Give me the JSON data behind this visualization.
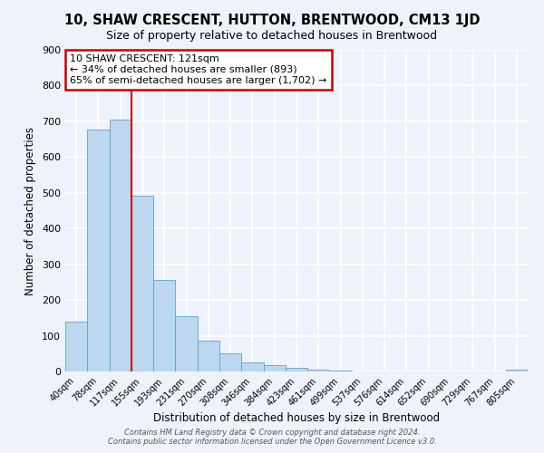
{
  "title": "10, SHAW CRESCENT, HUTTON, BRENTWOOD, CM13 1JD",
  "subtitle": "Size of property relative to detached houses in Brentwood",
  "xlabel": "Distribution of detached houses by size in Brentwood",
  "ylabel": "Number of detached properties",
  "bin_labels": [
    "40sqm",
    "78sqm",
    "117sqm",
    "155sqm",
    "193sqm",
    "231sqm",
    "270sqm",
    "308sqm",
    "346sqm",
    "384sqm",
    "423sqm",
    "461sqm",
    "499sqm",
    "537sqm",
    "576sqm",
    "614sqm",
    "652sqm",
    "690sqm",
    "729sqm",
    "767sqm",
    "805sqm"
  ],
  "bar_heights": [
    140,
    678,
    705,
    493,
    256,
    155,
    87,
    51,
    25,
    18,
    10,
    6,
    3,
    1,
    1,
    0,
    0,
    0,
    0,
    0,
    5
  ],
  "bar_color": "#BDD7EE",
  "bar_edge_color": "#5BA3D0",
  "highlight_line_index": 2,
  "annotation_title": "10 SHAW CRESCENT: 121sqm",
  "annotation_line1": "← 34% of detached houses are smaller (893)",
  "annotation_line2": "65% of semi-detached houses are larger (1,702) →",
  "annotation_box_facecolor": "#ffffff",
  "annotation_box_edgecolor": "#cc0000",
  "vline_color": "#cc0000",
  "ylim": [
    0,
    900
  ],
  "yticks": [
    0,
    100,
    200,
    300,
    400,
    500,
    600,
    700,
    800,
    900
  ],
  "footer1": "Contains HM Land Registry data © Crown copyright and database right 2024.",
  "footer2": "Contains public sector information licensed under the Open Government Licence v3.0.",
  "bg_color": "#eef2fa",
  "grid_color": "#ffffff",
  "title_fontsize": 10.5,
  "subtitle_fontsize": 9
}
